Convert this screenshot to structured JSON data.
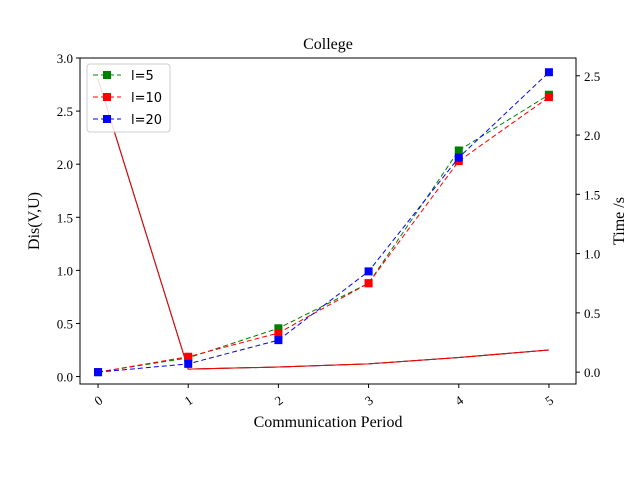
{
  "chart_data": {
    "type": "line",
    "title": "College",
    "xlabel": "Communication Period",
    "ylabel_left": "Dis(V,U)",
    "ylabel_right": "Time /s",
    "x": [
      0,
      1,
      2,
      3,
      4,
      5
    ],
    "x_tick_labels": [
      "0",
      "1",
      "2",
      "3",
      "4",
      "5"
    ],
    "left_axis": {
      "ylim": [
        -0.07,
        3.0
      ],
      "ticks": [
        "0.0",
        "0.5",
        "1.0",
        "1.5",
        "2.0",
        "2.5",
        "3.0"
      ]
    },
    "right_axis": {
      "ylim": [
        -0.1,
        2.65
      ],
      "ticks": [
        "0.0",
        "0.5",
        "1.0",
        "1.5",
        "2.0",
        "2.5"
      ]
    },
    "legend_position": "top-left",
    "grid": false,
    "series": [
      {
        "name": "l=5",
        "axis": "right",
        "color": "#008000",
        "style": "dashed",
        "marker": "square",
        "values": [
          0.0,
          0.12,
          0.37,
          0.75,
          1.87,
          2.34
        ]
      },
      {
        "name": "l=10",
        "axis": "right",
        "color": "#ff0000",
        "style": "dashed",
        "marker": "square",
        "values": [
          0.0,
          0.13,
          0.33,
          0.75,
          1.78,
          2.32
        ]
      },
      {
        "name": "l=20",
        "axis": "right",
        "color": "#0000ff",
        "style": "dashed",
        "marker": "square",
        "values": [
          0.0,
          0.07,
          0.27,
          0.85,
          1.81,
          2.53
        ]
      },
      {
        "axis": "left",
        "color": "#0000ff",
        "style": "solid",
        "values": [
          2.8,
          0.07,
          0.09,
          0.12,
          0.18,
          0.25
        ]
      },
      {
        "axis": "left",
        "color": "#008000",
        "style": "solid",
        "values": [
          2.8,
          0.07,
          0.09,
          0.12,
          0.18,
          0.25
        ]
      },
      {
        "axis": "left",
        "color": "#ff0000",
        "style": "solid",
        "values": [
          2.8,
          0.07,
          0.09,
          0.12,
          0.18,
          0.25
        ]
      }
    ]
  }
}
